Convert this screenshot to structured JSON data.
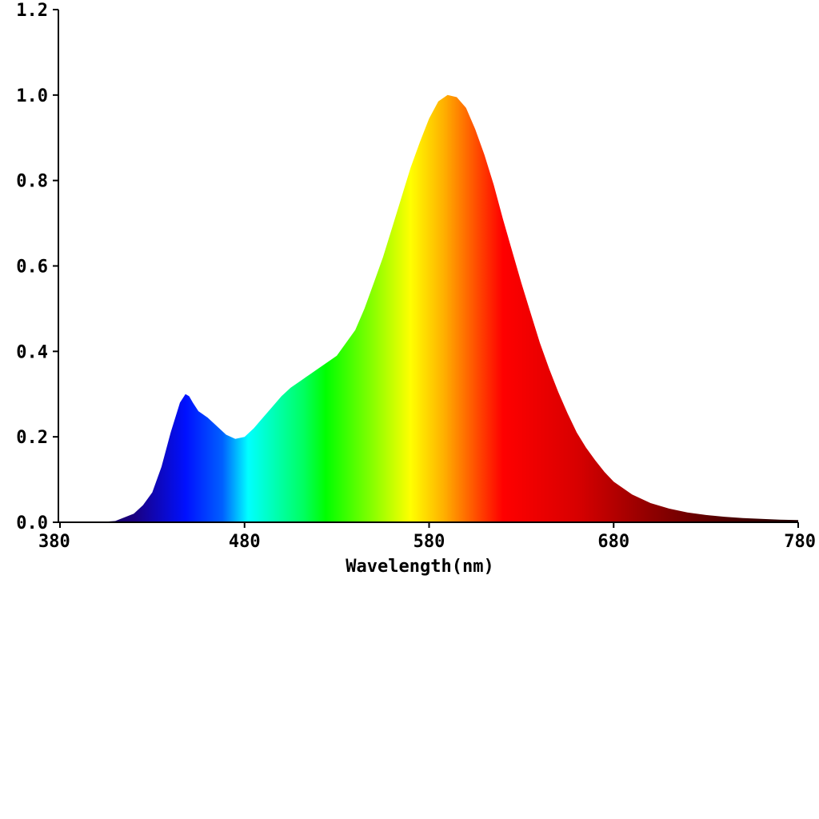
{
  "chart_data": {
    "type": "area",
    "title": "",
    "xlabel": "Wavelength(nm)",
    "ylabel": "",
    "xlim": [
      380,
      780
    ],
    "ylim": [
      0,
      1.2
    ],
    "x_ticks": [
      "380",
      "480",
      "580",
      "680",
      "780"
    ],
    "y_ticks": [
      "0.0",
      "0.2",
      "0.4",
      "0.6",
      "0.8",
      "1.0",
      "1.2"
    ],
    "grid": false,
    "fill": "visible-spectrum-gradient",
    "series": [
      {
        "x": [
          380,
          390,
          400,
          410,
          420,
          425,
          430,
          435,
          440,
          445,
          448,
          450,
          452,
          455,
          460,
          465,
          470,
          475,
          480,
          485,
          490,
          495,
          500,
          505,
          510,
          515,
          520,
          525,
          530,
          540,
          545,
          550,
          555,
          560,
          565,
          570,
          575,
          580,
          585,
          590,
          595,
          600,
          605,
          610,
          615,
          620,
          625,
          630,
          635,
          640,
          645,
          650,
          655,
          660,
          665,
          670,
          675,
          680,
          690,
          700,
          710,
          720,
          730,
          740,
          750,
          760,
          770,
          780
        ],
        "values": [
          0.0,
          0.0,
          0.0,
          0.003,
          0.02,
          0.04,
          0.07,
          0.13,
          0.21,
          0.28,
          0.3,
          0.295,
          0.28,
          0.26,
          0.245,
          0.225,
          0.205,
          0.195,
          0.2,
          0.22,
          0.245,
          0.27,
          0.295,
          0.315,
          0.33,
          0.345,
          0.36,
          0.375,
          0.39,
          0.45,
          0.5,
          0.56,
          0.62,
          0.69,
          0.76,
          0.83,
          0.89,
          0.945,
          0.985,
          1.0,
          0.995,
          0.97,
          0.92,
          0.86,
          0.79,
          0.71,
          0.635,
          0.56,
          0.49,
          0.42,
          0.36,
          0.305,
          0.255,
          0.21,
          0.175,
          0.145,
          0.118,
          0.095,
          0.065,
          0.045,
          0.032,
          0.023,
          0.017,
          0.013,
          0.01,
          0.008,
          0.006,
          0.005
        ]
      }
    ]
  }
}
